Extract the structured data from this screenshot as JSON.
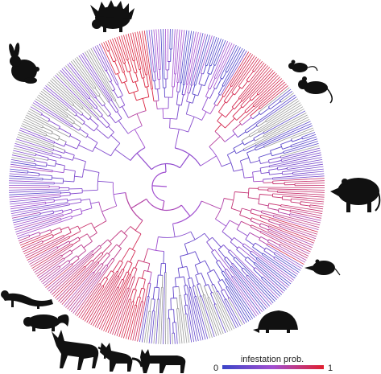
{
  "figure": {
    "type": "circular-phylogeny",
    "colors": {
      "low": "#3b45c8",
      "mid": "#a24fd0",
      "high": "#e01f2f",
      "unscored": "#9a9a9a",
      "silhouette": "#111111"
    },
    "silhouettes": [
      "porcupine-icon",
      "rabbit-icon",
      "rat-icon",
      "mouse-icon",
      "opossum-icon",
      "shrew-icon",
      "hedgehog-icon",
      "ferret-icon",
      "skunk-icon",
      "jackal-icon",
      "fox-icon",
      "lynx-icon"
    ]
  },
  "legend": {
    "title": "infestation prob.",
    "min_label": "0",
    "max_label": "1"
  }
}
